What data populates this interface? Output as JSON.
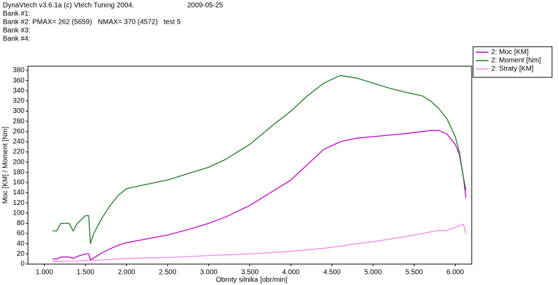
{
  "chart_data": {
    "type": "line",
    "header": [
      "DynaVtech v3.6.1a (c) Vtech Tuning 2004.",
      "Bank #1:",
      "Bank #2: PMAX= 262 (5659)   NMAX= 370 (4572)   test 5",
      "Bank #3:",
      "Bank #4:"
    ],
    "date": "2009-05-25",
    "x_label": "Obroty silnika [obr/min]",
    "y_label": "Moc [KM] / Moment [Nm]",
    "x": [
      1100,
      1150,
      1200,
      1300,
      1350,
      1400,
      1500,
      1540,
      1560,
      1600,
      1700,
      1800,
      1900,
      2000,
      2200,
      2500,
      2800,
      3000,
      3200,
      3500,
      3800,
      4000,
      4200,
      4400,
      4600,
      4800,
      5000,
      5200,
      5400,
      5600,
      5700,
      5800,
      5900,
      6000,
      6050,
      6100,
      6130
    ],
    "series": [
      {
        "name": "2: Moc [KM]",
        "color": "#c000c0",
        "values": [
          10,
          10,
          14,
          14,
          11,
          15,
          20,
          20,
          8,
          12,
          22,
          30,
          37,
          42,
          48,
          57,
          70,
          80,
          92,
          115,
          145,
          165,
          195,
          225,
          240,
          247,
          250,
          253,
          256,
          260,
          262,
          262,
          255,
          235,
          215,
          170,
          130
        ]
      },
      {
        "name": "2: Moment [Nm]",
        "color": "#1a7a1a",
        "values": [
          65,
          65,
          80,
          80,
          65,
          80,
          95,
          95,
          40,
          60,
          90,
          115,
          135,
          148,
          155,
          165,
          180,
          190,
          205,
          235,
          275,
          300,
          330,
          355,
          370,
          365,
          355,
          345,
          337,
          330,
          320,
          305,
          285,
          250,
          220,
          170,
          145
        ]
      },
      {
        "name": "2: Straty [KM]",
        "color": "#ee88ee",
        "values": [
          5,
          5,
          5,
          6,
          6,
          6,
          7,
          7,
          7,
          7,
          8,
          9,
          10,
          11,
          12,
          13,
          15,
          17,
          18,
          20,
          23,
          25,
          28,
          31,
          35,
          40,
          44,
          49,
          54,
          60,
          63,
          66,
          66,
          72,
          75,
          78,
          60
        ]
      }
    ],
    "xlim": [
      800,
      6200
    ],
    "xticks": [
      {
        "value": 1000,
        "label": "1.000"
      },
      {
        "value": 1500,
        "label": "1.500"
      },
      {
        "value": 2000,
        "label": "2.000"
      },
      {
        "value": 2500,
        "label": "2.500"
      },
      {
        "value": 3000,
        "label": "3.000"
      },
      {
        "value": 3500,
        "label": "3.500"
      },
      {
        "value": 4000,
        "label": "4.000"
      },
      {
        "value": 4500,
        "label": "4.500"
      },
      {
        "value": 5000,
        "label": "5.000"
      },
      {
        "value": 5500,
        "label": "5.500"
      },
      {
        "value": 6000,
        "label": "6.000"
      }
    ],
    "ylim": [
      0,
      380
    ],
    "yticks": [
      0,
      20,
      40,
      60,
      80,
      100,
      120,
      140,
      160,
      180,
      200,
      220,
      240,
      260,
      280,
      300,
      320,
      340,
      360,
      380
    ]
  }
}
